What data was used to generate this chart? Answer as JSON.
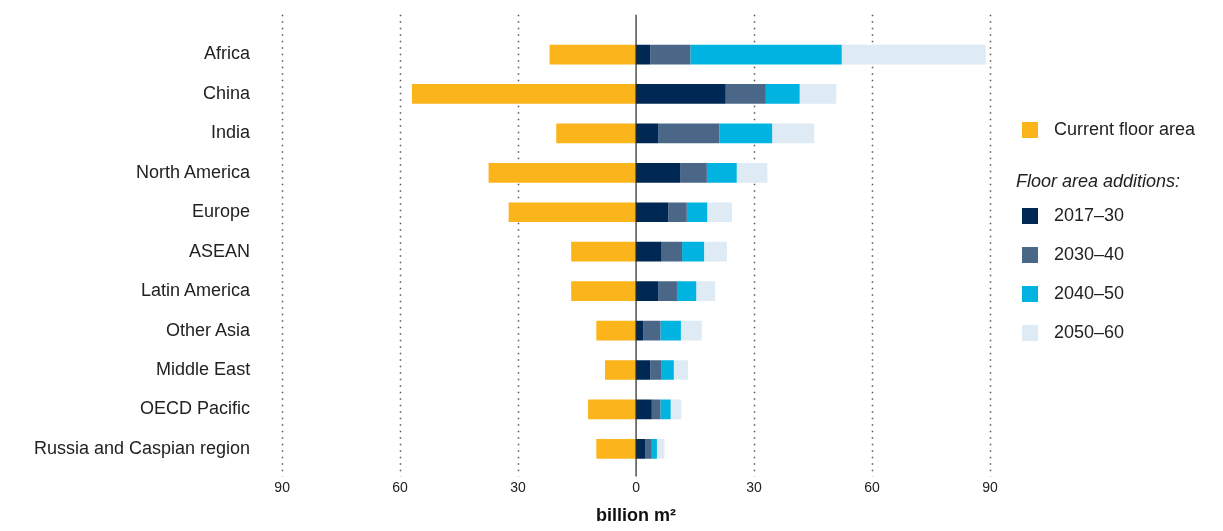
{
  "chart_data": {
    "type": "bar",
    "orientation": "horizontal",
    "stacked": true,
    "categories": [
      "Africa",
      "China",
      "India",
      "North America",
      "Europe",
      "ASEAN",
      "Latin America",
      "Other Asia",
      "Middle East",
      "OECD Pacific",
      "Russia and Caspian region"
    ],
    "series": [
      {
        "name": "Current floor area",
        "color": "#fbb41a",
        "values": [
          -22,
          -57,
          -20.3,
          -37.5,
          -32.4,
          -16.5,
          -16.5,
          -10.1,
          -7.9,
          -12.2,
          -10.1
        ]
      },
      {
        "name": "2017–30",
        "color": "#002855",
        "values": [
          3.6,
          22.8,
          5.7,
          11.3,
          8.2,
          6.5,
          5.7,
          1.8,
          3.6,
          4,
          2.3
        ]
      },
      {
        "name": "2030–40",
        "color": "#4b6788",
        "values": [
          10.2,
          10.2,
          15.5,
          6.7,
          4.7,
          5.2,
          4.7,
          4.4,
          2.9,
          2.2,
          1.7
        ]
      },
      {
        "name": "2040–50",
        "color": "#00b3e0",
        "values": [
          38.5,
          8.6,
          13.4,
          7.6,
          5.2,
          5.6,
          4.9,
          5.2,
          3.1,
          2.6,
          1.3
        ]
      },
      {
        "name": "2050–60",
        "color": "#deebf5",
        "values": [
          36.6,
          9.3,
          10.7,
          7.8,
          6.3,
          5.8,
          4.8,
          5.3,
          3.6,
          2.7,
          1.9
        ]
      }
    ],
    "xlabel": "billion m²",
    "legend_title": "Floor area additions:",
    "legend": "right",
    "grid": "x",
    "xlim": [
      -90,
      90
    ],
    "xticks": [
      {
        "value": -90,
        "label": "90"
      },
      {
        "value": -60,
        "label": "60"
      },
      {
        "value": -30,
        "label": "30"
      },
      0,
      30,
      60,
      90
    ]
  }
}
